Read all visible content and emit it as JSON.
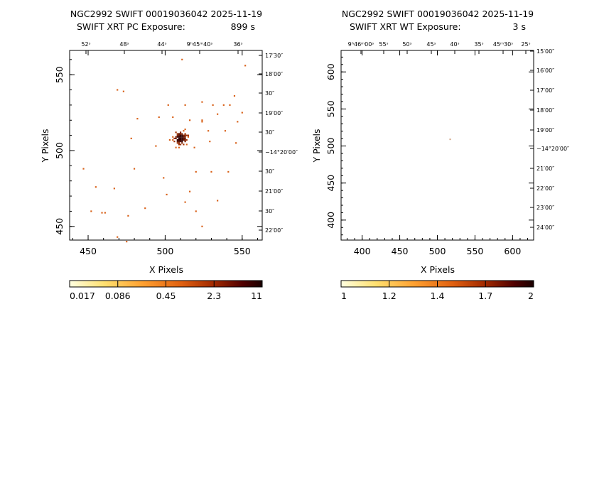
{
  "panels": [
    {
      "title_line1": "NGC2992 SWIFT 00019036042 2025-11-19",
      "title_line2_label": "SWIFT XRT PC Exposure:",
      "title_line2_value": "899 s",
      "x_label": "X Pixels",
      "y_label": "Y Pixels",
      "x_ticks": [
        "450",
        "500",
        "550"
      ],
      "y_ticks": [
        "450",
        "500",
        "550"
      ],
      "ra_ticks": [
        "52ˢ",
        "48ˢ",
        "44ˢ",
        "9ʰ45ᵐ40ˢ",
        "36ˢ"
      ],
      "dec_ticks": [
        "17′30″",
        "18′00″",
        "30″",
        "19′00″",
        "30″",
        "−14°20′00″",
        "30″",
        "21′00″",
        "30″",
        "22′00″"
      ],
      "colorbar_ticks": [
        "0.017",
        "0.086",
        "0.45",
        "2.3",
        "11"
      ]
    },
    {
      "title_line1": "NGC2992 SWIFT 00019036042 2025-11-19",
      "title_line2_label": "SWIFT XRT WT Exposure:",
      "title_line2_value": "3 s",
      "x_label": "X Pixels",
      "y_label": "Y Pixels",
      "x_ticks": [
        "400",
        "450",
        "500",
        "550",
        "600"
      ],
      "y_ticks": [
        "400",
        "450",
        "500",
        "550",
        "600"
      ],
      "ra_ticks": [
        "9ʰ46ᵐ00ˢ",
        "55ˢ",
        "50ˢ",
        "45ˢ",
        "40ˢ",
        "35ˢ",
        "45ᵐ30ˢ",
        "25ˢ"
      ],
      "dec_ticks": [
        "15′00″",
        "16′00″",
        "17′00″",
        "18′00″",
        "19′00″",
        "−14°20′00″",
        "21′00″",
        "22′00″",
        "23′00″",
        "24′00″"
      ],
      "colorbar_ticks": [
        "1",
        "1.2",
        "1.4",
        "1.7",
        "2"
      ]
    }
  ],
  "chart_data": [
    {
      "type": "heatmap",
      "title": "NGC2992 SWIFT 00019036042 2025-11-19",
      "subtitle": "SWIFT XRT PC Exposure: 899 s",
      "xlabel": "X Pixels",
      "ylabel": "Y Pixels",
      "xlim": [
        438,
        563
      ],
      "ylim": [
        441,
        566
      ],
      "colorbar_range": [
        0.017,
        11
      ],
      "colorbar_scale": "log",
      "source_center": [
        510,
        508
      ],
      "events": [
        [
          511,
          560
        ],
        [
          552,
          556
        ],
        [
          469,
          540
        ],
        [
          473,
          539
        ],
        [
          545,
          536
        ],
        [
          524,
          532
        ],
        [
          531,
          530
        ],
        [
          538,
          530
        ],
        [
          542,
          530
        ],
        [
          502,
          530
        ],
        [
          513,
          530
        ],
        [
          550,
          525
        ],
        [
          534,
          524
        ],
        [
          505,
          522
        ],
        [
          496,
          522
        ],
        [
          516,
          520
        ],
        [
          524,
          520
        ],
        [
          547,
          519
        ],
        [
          524,
          519
        ],
        [
          482,
          521
        ],
        [
          528,
          513
        ],
        [
          539,
          513
        ],
        [
          478,
          508
        ],
        [
          546,
          505
        ],
        [
          529,
          506
        ],
        [
          494,
          503
        ],
        [
          519,
          502
        ],
        [
          447,
          488
        ],
        [
          520,
          486
        ],
        [
          530,
          486
        ],
        [
          541,
          486
        ],
        [
          480,
          488
        ],
        [
          499,
          482
        ],
        [
          455,
          476
        ],
        [
          467,
          475
        ],
        [
          516,
          473
        ],
        [
          513,
          466
        ],
        [
          534,
          467
        ],
        [
          501,
          471
        ],
        [
          452,
          460
        ],
        [
          459,
          459
        ],
        [
          461,
          459
        ],
        [
          476,
          457
        ],
        [
          520,
          460
        ],
        [
          524,
          450
        ],
        [
          487,
          462
        ],
        [
          469,
          443
        ],
        [
          475,
          440
        ]
      ]
    },
    {
      "type": "heatmap",
      "title": "NGC2992 SWIFT 00019036042 2025-11-19",
      "subtitle": "SWIFT XRT WT Exposure: 3 s",
      "xlabel": "X Pixels",
      "ylabel": "Y Pixels",
      "xlim": [
        372,
        628
      ],
      "ylim": [
        373,
        629
      ],
      "colorbar_range": [
        1,
        2
      ],
      "colorbar_scale": "log",
      "events": [
        [
          517,
          509
        ]
      ]
    }
  ],
  "colors": {
    "colorbar": [
      "#ffffe0",
      "#ffe066",
      "#ffa030",
      "#e06010",
      "#b03000",
      "#600000",
      "#200000"
    ],
    "pixel_low": "#d86018",
    "pixel_high": "#300000"
  }
}
